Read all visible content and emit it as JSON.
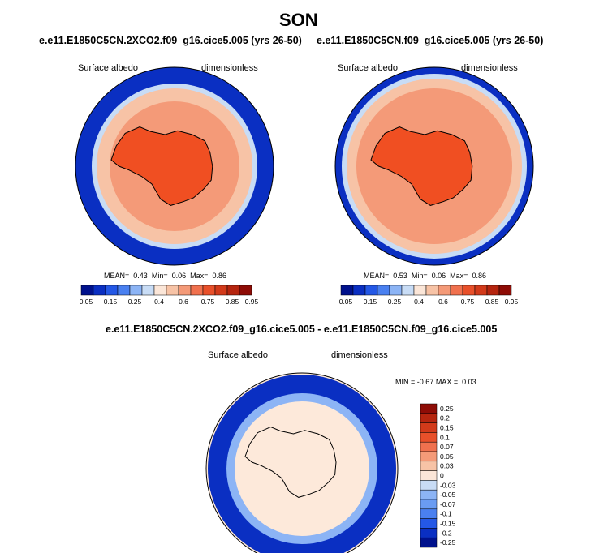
{
  "page_title": "SON",
  "chart_data": [
    {
      "type": "heatmap",
      "title": "e.e11.E1850C5CN.2XCO2.f09_g16.cice5.005 (yrs 26-50)",
      "left_label": "Surface albedo",
      "right_label": "dimensionless",
      "stats": {
        "mean_label": "MEAN=",
        "mean": "0.43",
        "min_label": "Min=",
        "min": "0.06",
        "max_label": "Max=",
        "max": "0.86"
      },
      "colorbar_ticks": [
        "0.05",
        "0.15",
        "0.25",
        "0.4",
        "0.6",
        "0.75",
        "0.85",
        "0.95"
      ]
    },
    {
      "type": "heatmap",
      "title": "e.e11.E1850C5CN.f09_g16.cice5.005 (yrs 26-50)",
      "left_label": "Surface albedo",
      "right_label": "dimensionless",
      "stats": {
        "mean_label": "MEAN=",
        "mean": "0.53",
        "min_label": "Min=",
        "min": "0.06",
        "max_label": "Max=",
        "max": "0.86"
      },
      "colorbar_ticks": [
        "0.05",
        "0.15",
        "0.25",
        "0.4",
        "0.6",
        "0.75",
        "0.85",
        "0.95"
      ]
    },
    {
      "type": "heatmap",
      "title": "e.e11.E1850C5CN.2XCO2.f09_g16.cice5.005 - e.e11.E1850C5CN.f09_g16.cice5.005",
      "left_label": "Surface albedo",
      "right_label": "dimensionless",
      "stats": {
        "min_label": "MIN =",
        "min": "-0.67",
        "max_label": "MAX =",
        "max": "0.03"
      },
      "colorbar_ticks": [
        "0.25",
        "0.2",
        "0.15",
        "0.1",
        "0.07",
        "0.05",
        "0.03",
        "0",
        "-0.03",
        "-0.05",
        "-0.07",
        "-0.1",
        "-0.15",
        "-0.2",
        "-0.25"
      ]
    }
  ],
  "colors": {
    "abs_scale": [
      "#00118c",
      "#0a2fc2",
      "#2458e6",
      "#4a80f0",
      "#8cb4f5",
      "#c8dcf5",
      "#fbe6d8",
      "#f7c3a6",
      "#f49a78",
      "#f0714e",
      "#e8502a",
      "#d23a1a",
      "#b5250f",
      "#8e0c06"
    ],
    "diff_scale": [
      "#8e0c06",
      "#b5250f",
      "#d23a1a",
      "#e8502a",
      "#f0714e",
      "#f49a78",
      "#f7c3a6",
      "#fbe6d8",
      "#c8dcf5",
      "#8cb4f5",
      "#6a9cf2",
      "#4a80f0",
      "#2458e6",
      "#0a2fc2",
      "#00118c"
    ],
    "ocean": "#0a2fc2",
    "ice_land": "#f04f22",
    "diff_background": "#fde9da"
  }
}
